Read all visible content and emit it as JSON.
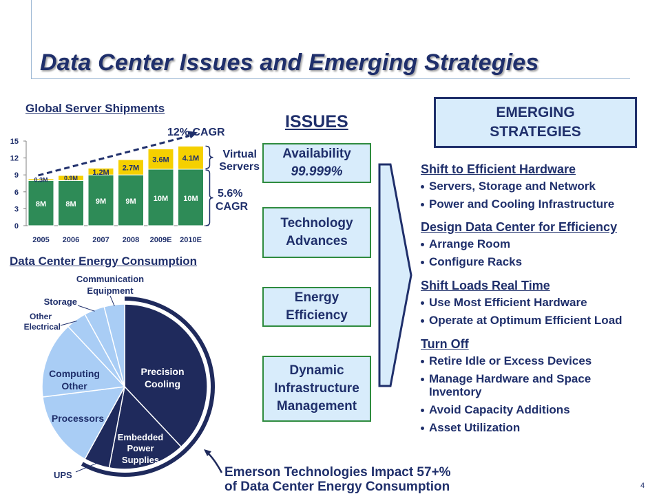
{
  "title": "Data Center Issues and Emerging Strategies",
  "page_number": "4",
  "shipments": {
    "heading": "Global Server Shipments",
    "cagr_top": "12% CAGR",
    "virtual_label": [
      "Virtual",
      "Servers"
    ],
    "cagr_base": [
      "5.6%",
      "CAGR"
    ],
    "y_ticks": [
      "0",
      "3",
      "6",
      "9",
      "12",
      "15"
    ],
    "colors": {
      "physical": "#2e8b57",
      "virtual": "#f5d000",
      "label": "#1f2f6b"
    }
  },
  "chart_data": [
    {
      "type": "bar",
      "title": "Global Server Shipments",
      "categories": [
        "2005",
        "2006",
        "2007",
        "2008",
        "2009E",
        "2010E"
      ],
      "ylim": [
        0,
        15
      ],
      "y_ticks": [
        0,
        3,
        6,
        9,
        12,
        15
      ],
      "stacked": true,
      "series": [
        {
          "values": [
            8,
            8,
            9,
            9,
            10,
            10
          ],
          "labels": [
            "8M",
            "8M",
            "9M",
            "9M",
            "10M",
            "10M"
          ]
        },
        {
          "values": [
            0.3,
            0.9,
            1.2,
            2.7,
            3.6,
            4.1
          ],
          "labels": [
            "0.3M",
            "0.9M",
            "1.2M",
            "2.7M",
            "3.6M",
            "4.1M"
          ]
        }
      ]
    },
    {
      "type": "pie",
      "title": "Data Center Energy Consumption",
      "slices": [
        {
          "label": "Precision Cooling",
          "value": 38
        },
        {
          "label": "Embedded Power Supplies",
          "value": 15
        },
        {
          "label": "UPS",
          "value": 5
        },
        {
          "label": "Processors",
          "value": 15
        },
        {
          "label": "Computing Other",
          "value": 15
        },
        {
          "label": "Other Electrical",
          "value": 4
        },
        {
          "label": "Storage",
          "value": 4
        },
        {
          "label": "Communication Equipment",
          "value": 4
        }
      ]
    }
  ],
  "energy": {
    "heading": "Data Center Energy Consumption",
    "colors": {
      "dark": "#1f2a5c",
      "light": "#a9cdf5",
      "edge": "#ffffff"
    },
    "labels": {
      "precision": [
        "Precision",
        "Cooling"
      ],
      "embedded": [
        "Embedded",
        "Power",
        "Supplies"
      ],
      "ups": "UPS",
      "processors": "Processors",
      "computing": [
        "Computing",
        "Other"
      ],
      "other_electrical": [
        "Other",
        "Electrical"
      ],
      "storage": "Storage",
      "communication": [
        "Communication",
        "Equipment"
      ]
    }
  },
  "issues": {
    "heading": "ISSUES",
    "items": [
      {
        "line1": "Availability",
        "line2": "99.999%"
      },
      {
        "line1": "Technology",
        "line2": "Advances"
      },
      {
        "line1": "Energy",
        "line2": "Efficiency"
      },
      {
        "line1": "Dynamic",
        "line2": "Infrastructure",
        "line3": "Management"
      }
    ]
  },
  "strategies": {
    "heading": [
      "EMERGING",
      "STRATEGIES"
    ],
    "groups": [
      {
        "title": "Shift to Efficient Hardware",
        "items": [
          "Servers, Storage and Network",
          "Power and Cooling Infrastructure"
        ]
      },
      {
        "title": "Design Data Center for Efficiency",
        "items": [
          "Arrange Room",
          "Configure Racks"
        ]
      },
      {
        "title": "Shift Loads Real Time",
        "items": [
          "Use Most Efficient Hardware",
          "Operate at Optimum Efficient Load"
        ]
      },
      {
        "title": "Turn Off",
        "items": [
          "Retire Idle or Excess Devices",
          "Manage Hardware and Space Inventory",
          "Avoid Capacity Additions",
          "Asset Utilization"
        ]
      }
    ]
  },
  "footnote": [
    "Emerson Technologies Impact 57+%",
    "of Data Center Energy Consumption"
  ]
}
